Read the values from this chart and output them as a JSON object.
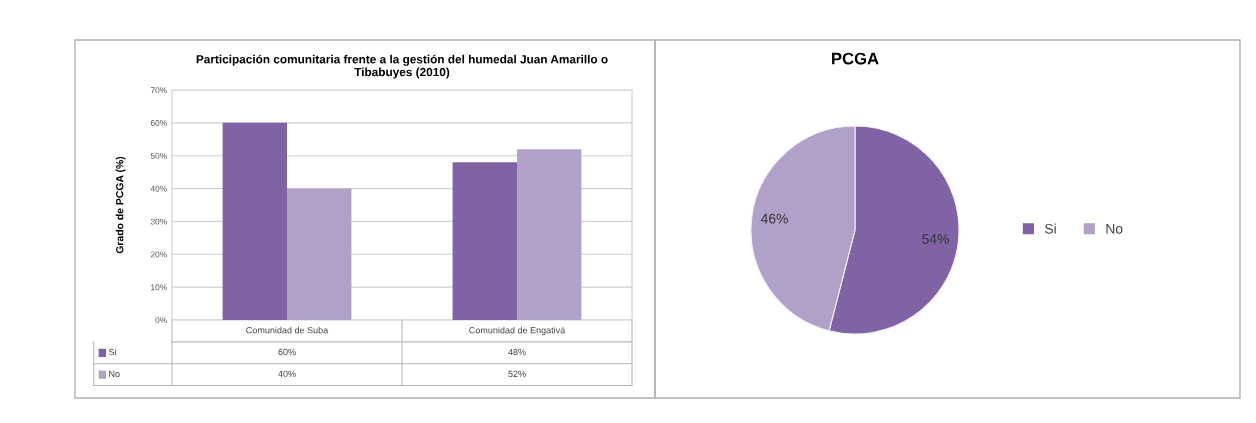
{
  "chart_data": [
    {
      "type": "bar",
      "title": "Participación comunitaria frente a la gestión del humedal Juan Amarillo o Tibabuyes (2010)",
      "ylabel": "Grado de PCGA (%)",
      "categories": [
        "Comunidad de Suba",
        "Comunidad de Engativá"
      ],
      "series": [
        {
          "name": "Si",
          "color": "#7f63a4",
          "values": [
            60,
            48
          ],
          "value_labels": [
            "60%",
            "48%"
          ]
        },
        {
          "name": "No",
          "color": "#b1a0c8",
          "values": [
            40,
            52
          ],
          "value_labels": [
            "40%",
            "52%"
          ]
        }
      ],
      "ylim": [
        0,
        70
      ],
      "yticks": [
        {
          "value": 0,
          "label": "0%"
        },
        {
          "value": 10,
          "label": "10%"
        },
        {
          "value": 20,
          "label": "20%"
        },
        {
          "value": 30,
          "label": "30%"
        },
        {
          "value": 40,
          "label": "40%"
        },
        {
          "value": 50,
          "label": "50%"
        },
        {
          "value": 60,
          "label": "60%"
        },
        {
          "value": 70,
          "label": "70%"
        }
      ],
      "grid": "y",
      "legend": "bottom left"
    },
    {
      "type": "pie",
      "title": "PCGA",
      "categories": [
        "Si",
        "No"
      ],
      "values": [
        54,
        46
      ],
      "colors": [
        "#7f63a4",
        "#b1a0c8"
      ],
      "value_labels": [
        "54%",
        "46%"
      ],
      "legend": "right"
    }
  ]
}
